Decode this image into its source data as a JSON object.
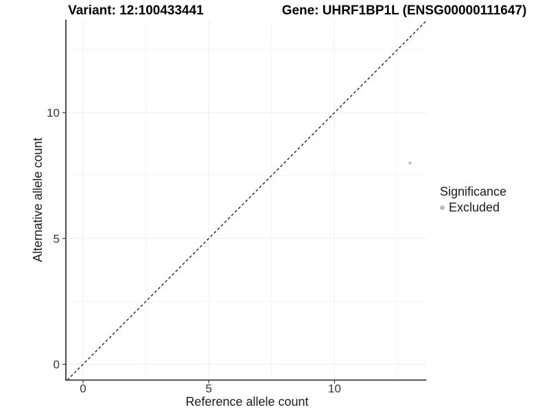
{
  "chart_data": {
    "type": "scatter",
    "titles": {
      "left": "Variant: 12:100433441",
      "right": "Gene: UHRF1BP1L (ENSG00000111647)"
    },
    "xlabel": "Reference allele count",
    "ylabel": "Alternative allele count",
    "x_ticks": [
      0,
      5,
      10
    ],
    "y_ticks": [
      0,
      5,
      10
    ],
    "x_minor_ticks": [
      2.5,
      7.5,
      12.5
    ],
    "y_minor_ticks": [
      2.5,
      7.5,
      12.5
    ],
    "xlim": [
      -0.7,
      13.7
    ],
    "ylim": [
      -0.65,
      13.7
    ],
    "grid": true,
    "points": [
      {
        "x": 13,
        "y": 8,
        "series": "Excluded"
      }
    ],
    "identity_line": {
      "style": "dashed",
      "slope": 1,
      "intercept": 0
    },
    "legend": {
      "title": "Significance",
      "position": "right",
      "items": [
        {
          "label": "Excluded",
          "color": "#bebebe"
        }
      ]
    },
    "colors": {
      "point": "#bebebe",
      "axis_line": "#3a3a3a",
      "tick_label": "#333333",
      "grid_major": "#eeeeee",
      "grid_minor": "#f4f4f4",
      "dashed_line": "#000000"
    }
  }
}
